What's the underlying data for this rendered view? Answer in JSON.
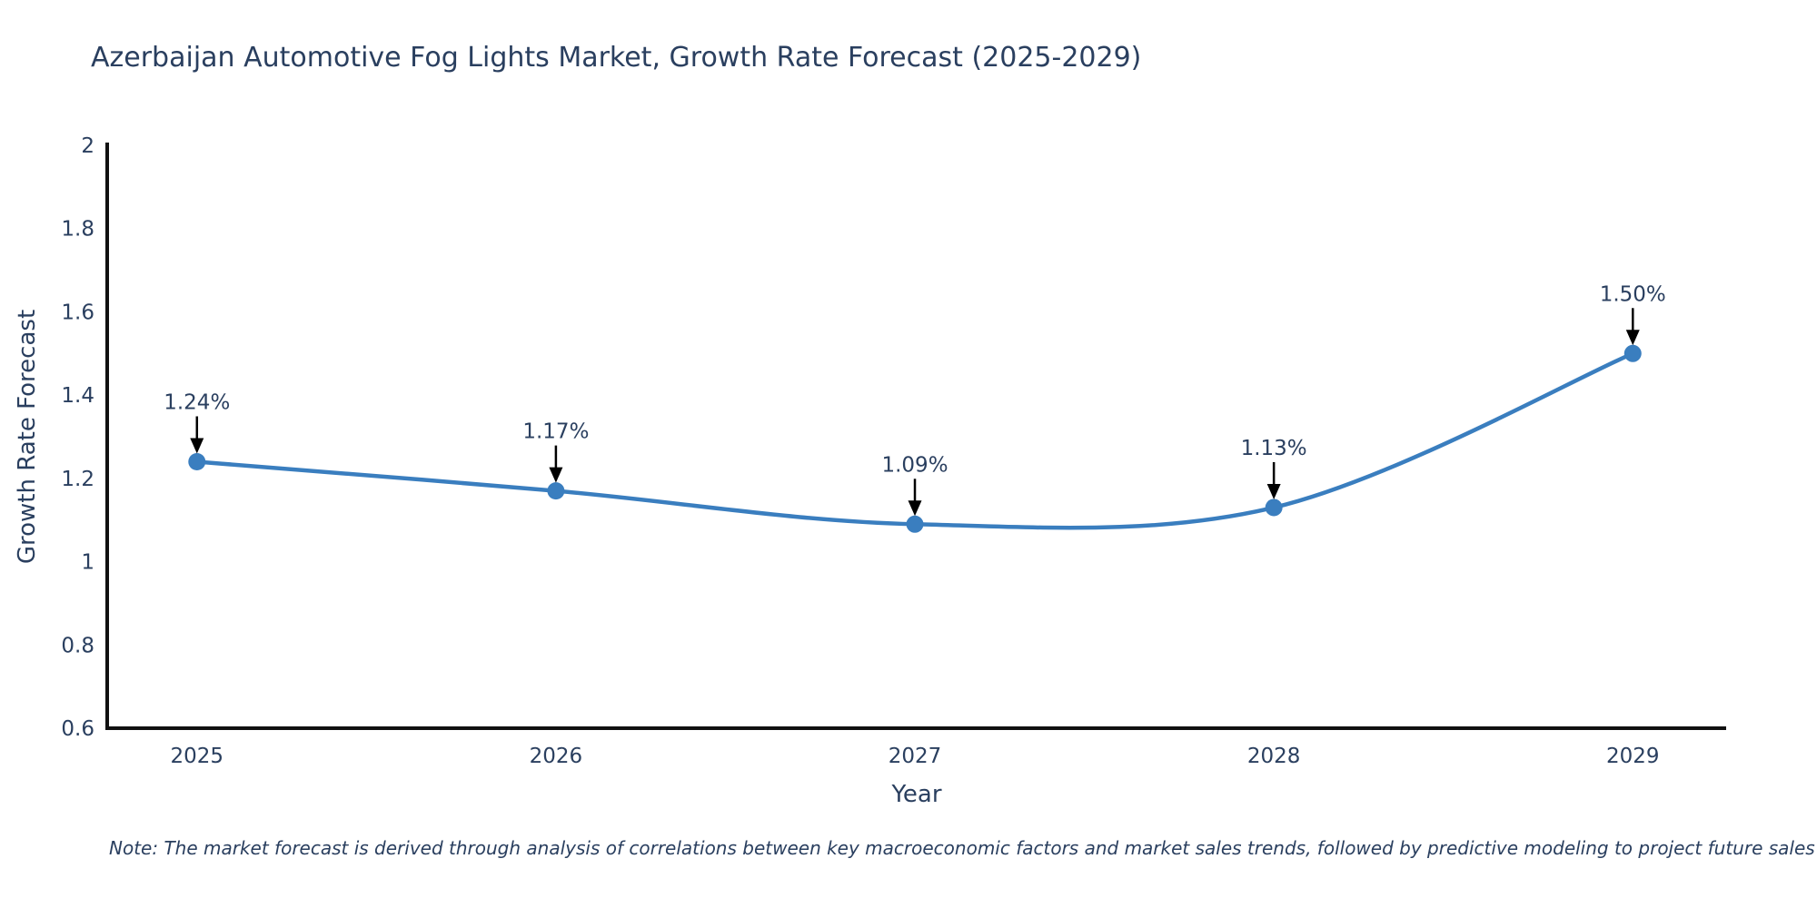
{
  "title": "Azerbaijan Automotive Fog Lights Market, Growth Rate Forecast (2025-2029)",
  "note": "Note: The market forecast is derived through analysis of correlations between key macroeconomic factors and market sales trends, followed by predictive modeling to project future sales",
  "chart_data": {
    "type": "line",
    "title": "Azerbaijan Automotive Fog Lights Market, Growth Rate Forecast (2025-2029)",
    "xlabel": "Year",
    "ylabel": "Growth Rate Forecast",
    "x": [
      2025,
      2026,
      2027,
      2028,
      2029
    ],
    "categories": [
      "2025",
      "2026",
      "2027",
      "2028",
      "2029"
    ],
    "values": [
      1.24,
      1.17,
      1.09,
      1.13,
      1.5
    ],
    "point_labels": [
      "1.24%",
      "1.17%",
      "1.09%",
      "1.13%",
      "1.50%"
    ],
    "xlim": [
      2024.75,
      2029.26
    ],
    "ylim": [
      0.6,
      2.0
    ],
    "yticks": {
      "values": [
        0.6,
        0.8,
        1,
        1.2,
        1.4,
        1.6,
        1.8,
        2
      ],
      "labels": [
        "0.6",
        "0.8",
        "1",
        "1.2",
        "1.4",
        "1.6",
        "1.8",
        "2"
      ]
    },
    "grid": false,
    "legend": "none",
    "line_shape": "spline",
    "annotations": "black arrows pointing down from value labels to markers",
    "colors": {
      "line": "#3a7ebf",
      "marker": "#3a7ebf",
      "axis": "#111111",
      "text": "#2a3f5f",
      "annotation_text": "#2a3f5f",
      "arrow": "#000000",
      "background": "#ffffff"
    }
  }
}
